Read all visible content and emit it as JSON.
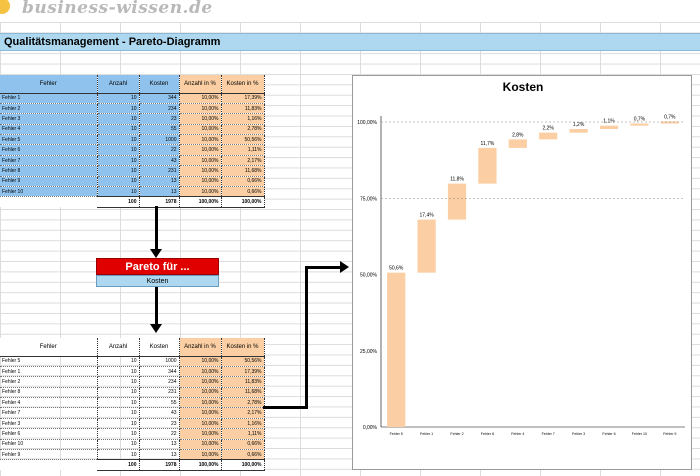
{
  "logo": {
    "text": "business-wissen.de"
  },
  "title": "Qualitätsmanagement - Pareto-Diagramm",
  "headers": [
    "Fehler",
    "Anzahl",
    "Kosten",
    "Anzahl in %",
    "Kosten in %"
  ],
  "table1": {
    "rows": [
      [
        "Fehler 1",
        "10",
        "344",
        "10,00%",
        "17,39%"
      ],
      [
        "Fehler 2",
        "10",
        "234",
        "10,00%",
        "11,83%"
      ],
      [
        "Fehler 3",
        "10",
        "23",
        "10,00%",
        "1,16%"
      ],
      [
        "Fehler 4",
        "10",
        "55",
        "10,00%",
        "2,78%"
      ],
      [
        "Fehler 5",
        "10",
        "1000",
        "10,00%",
        "50,56%"
      ],
      [
        "Fehler 6",
        "10",
        "22",
        "10,00%",
        "1,11%"
      ],
      [
        "Fehler 7",
        "10",
        "43",
        "10,00%",
        "2,17%"
      ],
      [
        "Fehler 8",
        "10",
        "231",
        "10,00%",
        "11,68%"
      ],
      [
        "Fehler 9",
        "10",
        "13",
        "10,00%",
        "0,66%"
      ],
      [
        "Fehler 10",
        "10",
        "13",
        "10,00%",
        "0,66%"
      ]
    ],
    "total": [
      "100",
      "1978",
      "100,00%",
      "100,00%"
    ]
  },
  "pareto_box": {
    "label": "Pareto für ...",
    "selected": "Kosten"
  },
  "table2": {
    "rows": [
      [
        "Fehler 5",
        "10",
        "1000",
        "10,00%",
        "50,56%"
      ],
      [
        "Fehler 1",
        "10",
        "344",
        "10,00%",
        "17,39%"
      ],
      [
        "Fehler 2",
        "10",
        "234",
        "10,00%",
        "11,83%"
      ],
      [
        "Fehler 8",
        "10",
        "231",
        "10,00%",
        "11,68%"
      ],
      [
        "Fehler 4",
        "10",
        "55",
        "10,00%",
        "2,78%"
      ],
      [
        "Fehler 7",
        "10",
        "43",
        "10,00%",
        "2,17%"
      ],
      [
        "Fehler 3",
        "10",
        "23",
        "10,00%",
        "1,16%"
      ],
      [
        "Fehler 6",
        "10",
        "22",
        "10,00%",
        "1,11%"
      ],
      [
        "Fehler 10",
        "10",
        "13",
        "10,00%",
        "0,66%"
      ],
      [
        "Fehler 9",
        "10",
        "13",
        "10,00%",
        "0,66%"
      ]
    ],
    "total": [
      "100",
      "1978",
      "100,00%",
      "100,00%"
    ]
  },
  "chart_data": {
    "type": "bar",
    "subtype": "waterfall",
    "title": "Kosten",
    "categories": [
      "Fehler 5",
      "Fehler 1",
      "Fehler 2",
      "Fehler 8",
      "Fehler 4",
      "Fehler 7",
      "Fehler 3",
      "Fehler 6",
      "Fehler 10",
      "Fehler 9"
    ],
    "values": [
      50.6,
      17.4,
      11.8,
      11.7,
      2.8,
      2.2,
      1.2,
      1.1,
      0.7,
      0.7
    ],
    "data_labels": [
      "50,6%",
      "17,4%",
      "11,8%",
      "11,7%",
      "2,8%",
      "2,2%",
      "1,2%",
      "1,1%",
      "0,7%",
      "0,7%"
    ],
    "y_ticks": [
      "0,00%",
      "25,00%",
      "50,00%",
      "75,00%",
      "100,00%"
    ],
    "ylim": [
      0,
      100
    ],
    "bar_color": "#fbcfa3",
    "dashed_reference_lines": true
  }
}
